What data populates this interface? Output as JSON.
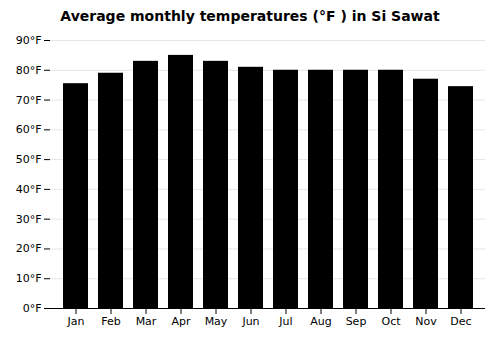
{
  "chart_data": {
    "type": "bar",
    "title": "Average monthly temperatures (°F ) in Si Sawat",
    "categories": [
      "Jan",
      "Feb",
      "Mar",
      "Apr",
      "May",
      "Jun",
      "Jul",
      "Aug",
      "Sep",
      "Oct",
      "Nov",
      "Dec"
    ],
    "values": [
      75.5,
      79.0,
      83.0,
      85.0,
      83.0,
      81.0,
      80.0,
      80.0,
      80.0,
      80.0,
      77.0,
      74.5
    ],
    "ylim": [
      0,
      90
    ],
    "yticks": [
      {
        "value": 0,
        "label": "0°F"
      },
      {
        "value": 10,
        "label": "10°F"
      },
      {
        "value": 20,
        "label": "20°F"
      },
      {
        "value": 30,
        "label": "30°F"
      },
      {
        "value": 40,
        "label": "40°F"
      },
      {
        "value": 50,
        "label": "50°F"
      },
      {
        "value": 60,
        "label": "60°F"
      },
      {
        "value": 70,
        "label": "70°F"
      },
      {
        "value": 80,
        "label": "80°F"
      },
      {
        "value": 90,
        "label": "90°F"
      }
    ],
    "grid": true
  }
}
